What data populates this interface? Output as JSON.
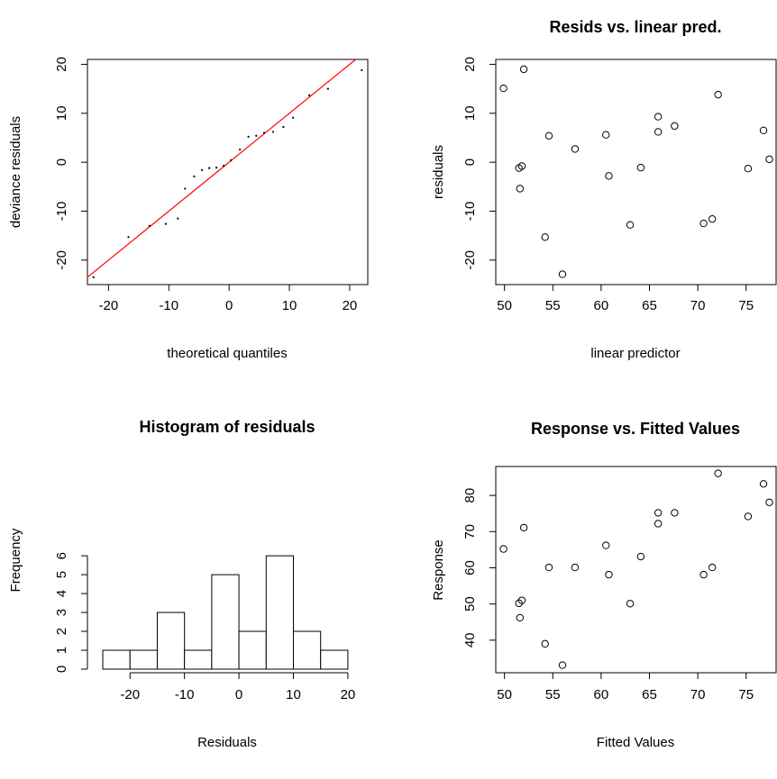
{
  "chart_data": [
    {
      "type": "scatter",
      "title": "",
      "xlabel": "theoretical quantiles",
      "ylabel": "deviance residuals",
      "xlim": [
        -23.5,
        23
      ],
      "ylim": [
        -25,
        21
      ],
      "xticks": [
        -20,
        -10,
        0,
        10,
        20
      ],
      "yticks": [
        -20,
        -10,
        0,
        10,
        20
      ],
      "x_tick_labels": [
        "-20",
        "-10",
        "0",
        "10",
        "20"
      ],
      "y_tick_labels": [
        "-20",
        "-10",
        "0",
        "10",
        "20"
      ],
      "reference_line": {
        "slope": 1,
        "intercept": 0,
        "color": "#ff0000"
      },
      "points": [
        [
          -22.5,
          -23.5
        ],
        [
          -16.7,
          -15.3
        ],
        [
          -13.2,
          -13.0
        ],
        [
          -10.5,
          -12.6
        ],
        [
          -8.5,
          -11.5
        ],
        [
          -7.3,
          -5.4
        ],
        [
          -5.8,
          -2.9
        ],
        [
          -4.5,
          -1.6
        ],
        [
          -3.3,
          -1.2
        ],
        [
          -2.1,
          -1.1
        ],
        [
          -0.9,
          -0.7
        ],
        [
          0.3,
          0.4
        ],
        [
          1.8,
          2.6
        ],
        [
          3.2,
          5.2
        ],
        [
          4.5,
          5.4
        ],
        [
          5.8,
          6.0
        ],
        [
          7.3,
          6.2
        ],
        [
          9.0,
          7.2
        ],
        [
          10.6,
          9.1
        ],
        [
          13.3,
          13.7
        ],
        [
          16.4,
          15.0
        ],
        [
          22.0,
          18.8
        ]
      ],
      "marker": "dot"
    },
    {
      "type": "scatter",
      "title": "Resids vs. linear pred.",
      "xlabel": "linear predictor",
      "ylabel": "residuals",
      "xlim": [
        49.1,
        78.1
      ],
      "ylim": [
        -25,
        21
      ],
      "xticks": [
        50,
        55,
        60,
        65,
        70,
        75
      ],
      "yticks": [
        -20,
        -10,
        0,
        10,
        20
      ],
      "x_tick_labels": [
        "50",
        "55",
        "60",
        "65",
        "70",
        "75"
      ],
      "y_tick_labels": [
        "-20",
        "-10",
        "0",
        "10",
        "20"
      ],
      "points": [
        [
          49.9,
          15.1
        ],
        [
          51.5,
          -1.2
        ],
        [
          51.6,
          -5.4
        ],
        [
          51.8,
          -0.8
        ],
        [
          52.0,
          19.0
        ],
        [
          54.2,
          -15.3
        ],
        [
          54.6,
          5.4
        ],
        [
          56.0,
          -22.9
        ],
        [
          57.3,
          2.7
        ],
        [
          60.5,
          5.6
        ],
        [
          60.8,
          -2.8
        ],
        [
          63.0,
          -12.8
        ],
        [
          64.1,
          -1.1
        ],
        [
          65.9,
          9.3
        ],
        [
          65.9,
          6.2
        ],
        [
          67.6,
          7.4
        ],
        [
          70.6,
          -12.5
        ],
        [
          71.5,
          -11.6
        ],
        [
          72.1,
          13.8
        ],
        [
          75.2,
          -1.3
        ],
        [
          76.8,
          6.5
        ],
        [
          77.4,
          0.6
        ]
      ],
      "marker": "circle"
    },
    {
      "type": "bar",
      "title": "Histogram of residuals",
      "xlabel": "Residuals",
      "ylabel": "Frequency",
      "xlim": [
        -26,
        22
      ],
      "ylim": [
        0,
        6.15
      ],
      "xticks": [
        -20,
        -10,
        0,
        10,
        20
      ],
      "yticks": [
        0,
        1,
        2,
        3,
        4,
        5,
        6
      ],
      "x_tick_labels": [
        "-20",
        "-10",
        "0",
        "10",
        "20"
      ],
      "y_tick_labels": [
        "0",
        "1",
        "2",
        "3",
        "4",
        "5",
        "6"
      ],
      "bin_edges": [
        -25,
        -20,
        -15,
        -10,
        -5,
        0,
        5,
        10,
        15,
        20
      ],
      "values": [
        1,
        1,
        3,
        1,
        5,
        2,
        6,
        2,
        1
      ]
    },
    {
      "type": "scatter",
      "title": "Response vs. Fitted Values",
      "xlabel": "Fitted Values",
      "ylabel": "Response",
      "xlim": [
        49.1,
        78.1
      ],
      "ylim": [
        31,
        88
      ],
      "xticks": [
        50,
        55,
        60,
        65,
        70,
        75
      ],
      "yticks": [
        40,
        50,
        60,
        70,
        80
      ],
      "x_tick_labels": [
        "50",
        "55",
        "60",
        "65",
        "70",
        "75"
      ],
      "y_tick_labels": [
        "40",
        "50",
        "60",
        "70",
        "80"
      ],
      "points": [
        [
          49.9,
          65.2
        ],
        [
          51.5,
          50.2
        ],
        [
          51.6,
          46.2
        ],
        [
          51.8,
          51.0
        ],
        [
          52.0,
          71.1
        ],
        [
          54.2,
          39.0
        ],
        [
          54.6,
          60.1
        ],
        [
          56.0,
          33.1
        ],
        [
          57.3,
          60.1
        ],
        [
          60.5,
          66.2
        ],
        [
          60.8,
          58.1
        ],
        [
          63.0,
          50.1
        ],
        [
          64.1,
          63.1
        ],
        [
          65.9,
          75.2
        ],
        [
          65.9,
          72.2
        ],
        [
          67.6,
          75.2
        ],
        [
          70.6,
          58.1
        ],
        [
          71.5,
          60.1
        ],
        [
          72.1,
          86.1
        ],
        [
          75.2,
          74.2
        ],
        [
          76.8,
          83.2
        ],
        [
          77.4,
          78.1
        ]
      ],
      "marker": "circle"
    }
  ]
}
